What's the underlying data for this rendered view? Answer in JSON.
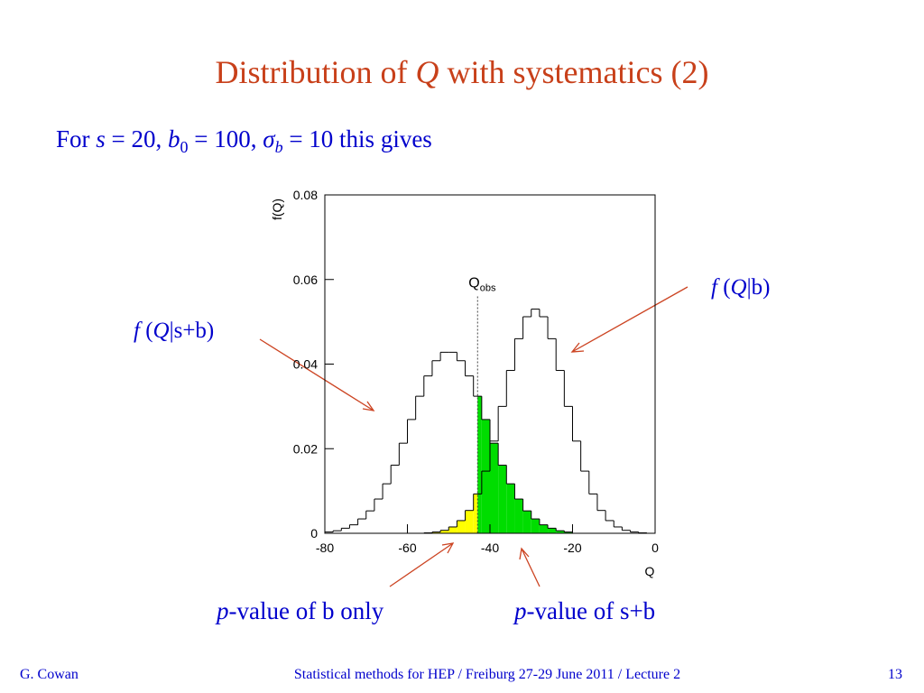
{
  "slide": {
    "title": [
      "Distribution of ",
      "Q",
      " with systematics (2)"
    ],
    "subtitle": [
      "For ",
      "s",
      " = 20, ",
      "b",
      "0",
      " = 100, ",
      "σ",
      "b",
      " = 10 this gives"
    ],
    "label_b": [
      "f",
      " (",
      "Q",
      "|b)"
    ],
    "label_sb": [
      "f",
      " (",
      "Q",
      "|s+b)"
    ],
    "pvalue_b": [
      "p",
      "-value of b only"
    ],
    "pvalue_sb": [
      "p",
      "-value of s+b"
    ],
    "footer_left": "G. Cowan",
    "footer_center": "Statistical methods for HEP / Freiburg 27-29 June 2011 / Lecture 2",
    "page_number": "13"
  },
  "chart_data": {
    "type": "histogram",
    "xlabel": "Q",
    "ylabel": "f(Q)",
    "bins": [
      -80,
      -78,
      -76,
      -74,
      -72,
      -70,
      -68,
      -66,
      -64,
      -62,
      -60,
      -58,
      -56,
      -54,
      -52,
      -50,
      -48,
      -46,
      -44,
      -42,
      -40,
      -38,
      -36,
      -34,
      -32,
      -30,
      -28,
      -26,
      -24,
      -22,
      -20,
      -18,
      -16,
      -14,
      -12,
      -10,
      -8,
      -6,
      -4,
      -2,
      0
    ],
    "series": [
      {
        "name": "f (Q|s+b)",
        "color": "#000000",
        "fill": "#00dd00",
        "fill_side": "right",
        "values": [
          0.0003,
          0.0006,
          0.0012,
          0.002,
          0.0034,
          0.0053,
          0.0081,
          0.0117,
          0.0161,
          0.0213,
          0.0269,
          0.0324,
          0.0372,
          0.0408,
          0.0428,
          0.0428,
          0.0408,
          0.0372,
          0.0324,
          0.0269,
          0.0213,
          0.0161,
          0.0117,
          0.0081,
          0.0053,
          0.0034,
          0.002,
          0.0012,
          0.0006,
          0.0003,
          0,
          0,
          0,
          0,
          0,
          0,
          0,
          0,
          0,
          0
        ]
      },
      {
        "name": "f (Q|b)",
        "color": "#000000",
        "fill": "#ffff00",
        "fill_side": "left",
        "values": [
          0,
          0,
          0,
          0,
          0,
          0,
          0,
          0,
          0,
          0,
          0,
          0,
          0.0001,
          0.0003,
          0.0007,
          0.0015,
          0.003,
          0.0054,
          0.0093,
          0.0147,
          0.0218,
          0.03,
          0.0385,
          0.046,
          0.0512,
          0.053,
          0.0512,
          0.046,
          0.0385,
          0.03,
          0.0218,
          0.0147,
          0.0093,
          0.0054,
          0.003,
          0.0015,
          0.0007,
          0.0003,
          0.0001,
          0
        ]
      }
    ],
    "annotation": {
      "label": [
        "Q",
        "obs"
      ],
      "x": -43
    },
    "xlim": [
      -80,
      0
    ],
    "ylim": [
      0,
      0.08
    ],
    "xticks": [
      -80,
      -60,
      -40,
      -20,
      0
    ],
    "yticks": [
      0,
      0.02,
      0.04,
      0.06,
      0.08
    ]
  }
}
